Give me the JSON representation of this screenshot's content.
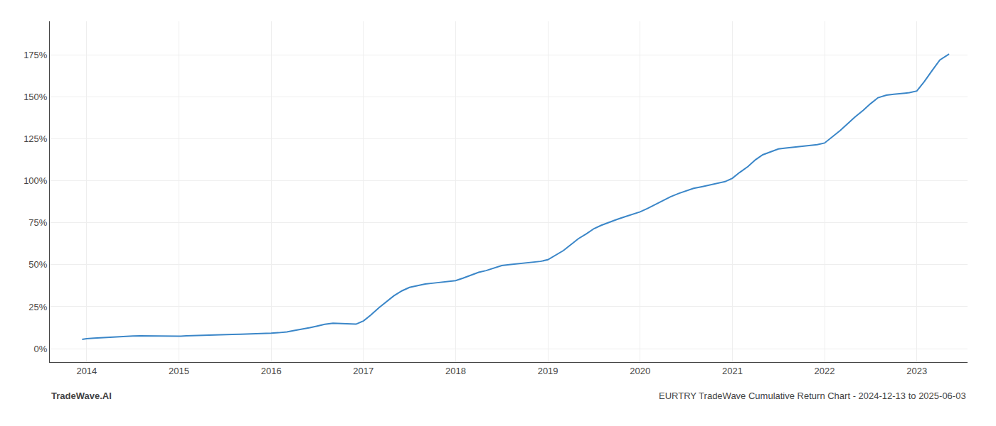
{
  "chart_data": {
    "type": "line",
    "annotations": [
      "TradeWave.AI",
      "EURTRY TradeWave Cumulative Return Chart - 2024-12-13 to 2025-06-03"
    ],
    "color": "#3a86c8",
    "grid": true,
    "xlim": [
      2013.6,
      2023.55
    ],
    "ylim": [
      -8,
      195
    ],
    "xticks": [
      2014,
      2015,
      2016,
      2017,
      2018,
      2019,
      2020,
      2021,
      2022,
      2023
    ],
    "yticks": [
      {
        "value": 0,
        "label": "0%"
      },
      {
        "value": 25,
        "label": "25%"
      },
      {
        "value": 50,
        "label": "50%"
      },
      {
        "value": 75,
        "label": "75%"
      },
      {
        "value": 100,
        "label": "100%"
      },
      {
        "value": 125,
        "label": "125%"
      },
      {
        "value": 150,
        "label": "150%"
      },
      {
        "value": 175,
        "label": "175%"
      }
    ],
    "x": [
      2013.95,
      2014.0,
      2014.08,
      2014.17,
      2014.25,
      2014.33,
      2014.42,
      2014.5,
      2014.58,
      2014.67,
      2014.75,
      2014.83,
      2014.92,
      2015.0,
      2015.08,
      2015.17,
      2015.25,
      2015.33,
      2015.42,
      2015.5,
      2015.58,
      2015.67,
      2015.75,
      2015.83,
      2015.92,
      2016.0,
      2016.08,
      2016.17,
      2016.25,
      2016.33,
      2016.42,
      2016.5,
      2016.58,
      2016.67,
      2016.75,
      2016.83,
      2016.92,
      2017.0,
      2017.08,
      2017.17,
      2017.25,
      2017.33,
      2017.42,
      2017.5,
      2017.58,
      2017.67,
      2017.75,
      2017.83,
      2017.92,
      2018.0,
      2018.08,
      2018.17,
      2018.25,
      2018.33,
      2018.42,
      2018.5,
      2018.58,
      2018.67,
      2018.75,
      2018.83,
      2018.92,
      2019.0,
      2019.08,
      2019.17,
      2019.25,
      2019.33,
      2019.42,
      2019.5,
      2019.58,
      2019.67,
      2019.75,
      2019.83,
      2019.92,
      2020.0,
      2020.08,
      2020.17,
      2020.25,
      2020.33,
      2020.42,
      2020.5,
      2020.58,
      2020.67,
      2020.75,
      2020.83,
      2020.92,
      2021.0,
      2021.08,
      2021.17,
      2021.25,
      2021.33,
      2021.42,
      2021.5,
      2021.58,
      2021.67,
      2021.75,
      2021.83,
      2021.92,
      2022.0,
      2022.08,
      2022.17,
      2022.25,
      2022.33,
      2022.42,
      2022.5,
      2022.58,
      2022.67,
      2022.75,
      2022.83,
      2022.92,
      2023.0,
      2023.08,
      2023.17,
      2023.25,
      2023.35
    ],
    "values": [
      5.5,
      6.0,
      6.3,
      6.6,
      6.9,
      7.1,
      7.3,
      7.5,
      7.6,
      7.5,
      7.4,
      7.3,
      7.2,
      7.4,
      7.6,
      7.8,
      8.0,
      8.2,
      8.3,
      8.4,
      8.5,
      8.6,
      8.7,
      8.8,
      9.0,
      9.2,
      9.5,
      10.0,
      10.8,
      11.5,
      12.5,
      13.5,
      14.5,
      15.2,
      15.0,
      14.8,
      14.6,
      16.5,
      20.0,
      24.5,
      28.0,
      31.5,
      34.5,
      36.5,
      37.5,
      38.5,
      39.0,
      39.5,
      40.0,
      40.5,
      42.0,
      44.0,
      45.5,
      46.5,
      48.0,
      49.5,
      50.0,
      50.5,
      51.0,
      51.5,
      52.0,
      53.0,
      55.5,
      58.5,
      62.0,
      65.5,
      68.5,
      71.5,
      73.5,
      75.5,
      77.0,
      78.5,
      80.0,
      81.5,
      83.5,
      86.0,
      88.5,
      90.5,
      92.5,
      94.0,
      95.5,
      96.5,
      97.5,
      98.5,
      99.5,
      101.5,
      105.0,
      108.5,
      112.5,
      115.5,
      117.5,
      119.0,
      119.5,
      120.0,
      120.5,
      121.0,
      121.5,
      122.5,
      126.0,
      130.0,
      134.0,
      138.0,
      142.0,
      146.0,
      149.5,
      151.0,
      151.5,
      152.0,
      152.5,
      153.5,
      159.0,
      166.0,
      172.0,
      175.5
    ]
  }
}
